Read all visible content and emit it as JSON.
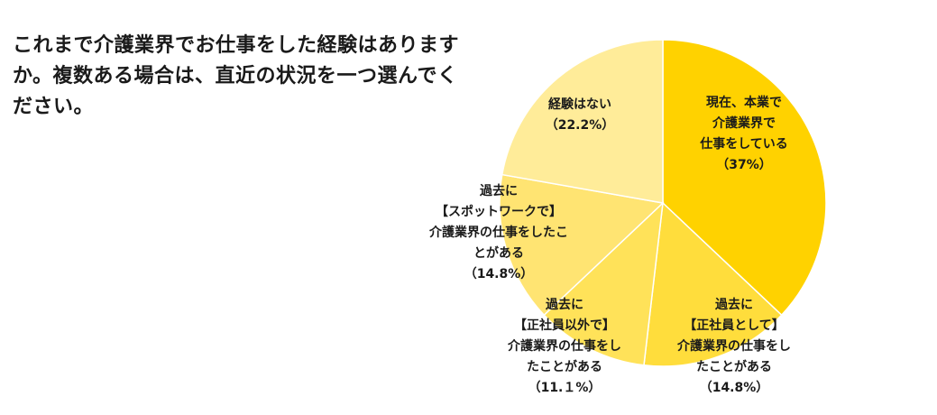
{
  "question": "これまで介護業界でお仕事をした経験はありますか。複数ある場合は、直近の状況を一つ選んでください。",
  "chart_data": {
    "type": "pie",
    "start": "top",
    "direction": "clockwise",
    "slices": [
      {
        "label_lines": [
          "現在、本業で",
          "介護業界で",
          "仕事をしている",
          "（37%）"
        ],
        "value": 37.0,
        "color": "#FFD200"
      },
      {
        "label_lines": [
          "過去に",
          "【正社員として】",
          "介護業界の仕事をし",
          "たことがある",
          "（14.8%）"
        ],
        "value": 14.8,
        "color": "#FFDD3C"
      },
      {
        "label_lines": [
          "過去に",
          "【正社員以外で】",
          "介護業界の仕事をし",
          "たことがある",
          "（11.１%）"
        ],
        "value": 11.1,
        "color": "#FFE259"
      },
      {
        "label_lines": [
          "過去に",
          "【スポットワークで】",
          "介護業界の仕事をしたこ",
          "とがある",
          "（14.8%）"
        ],
        "value": 14.8,
        "color": "#FFE472"
      },
      {
        "label_lines": [
          "経験はない",
          "（22.2%）"
        ],
        "value": 22.2,
        "color": "#FFEC99"
      }
    ]
  }
}
